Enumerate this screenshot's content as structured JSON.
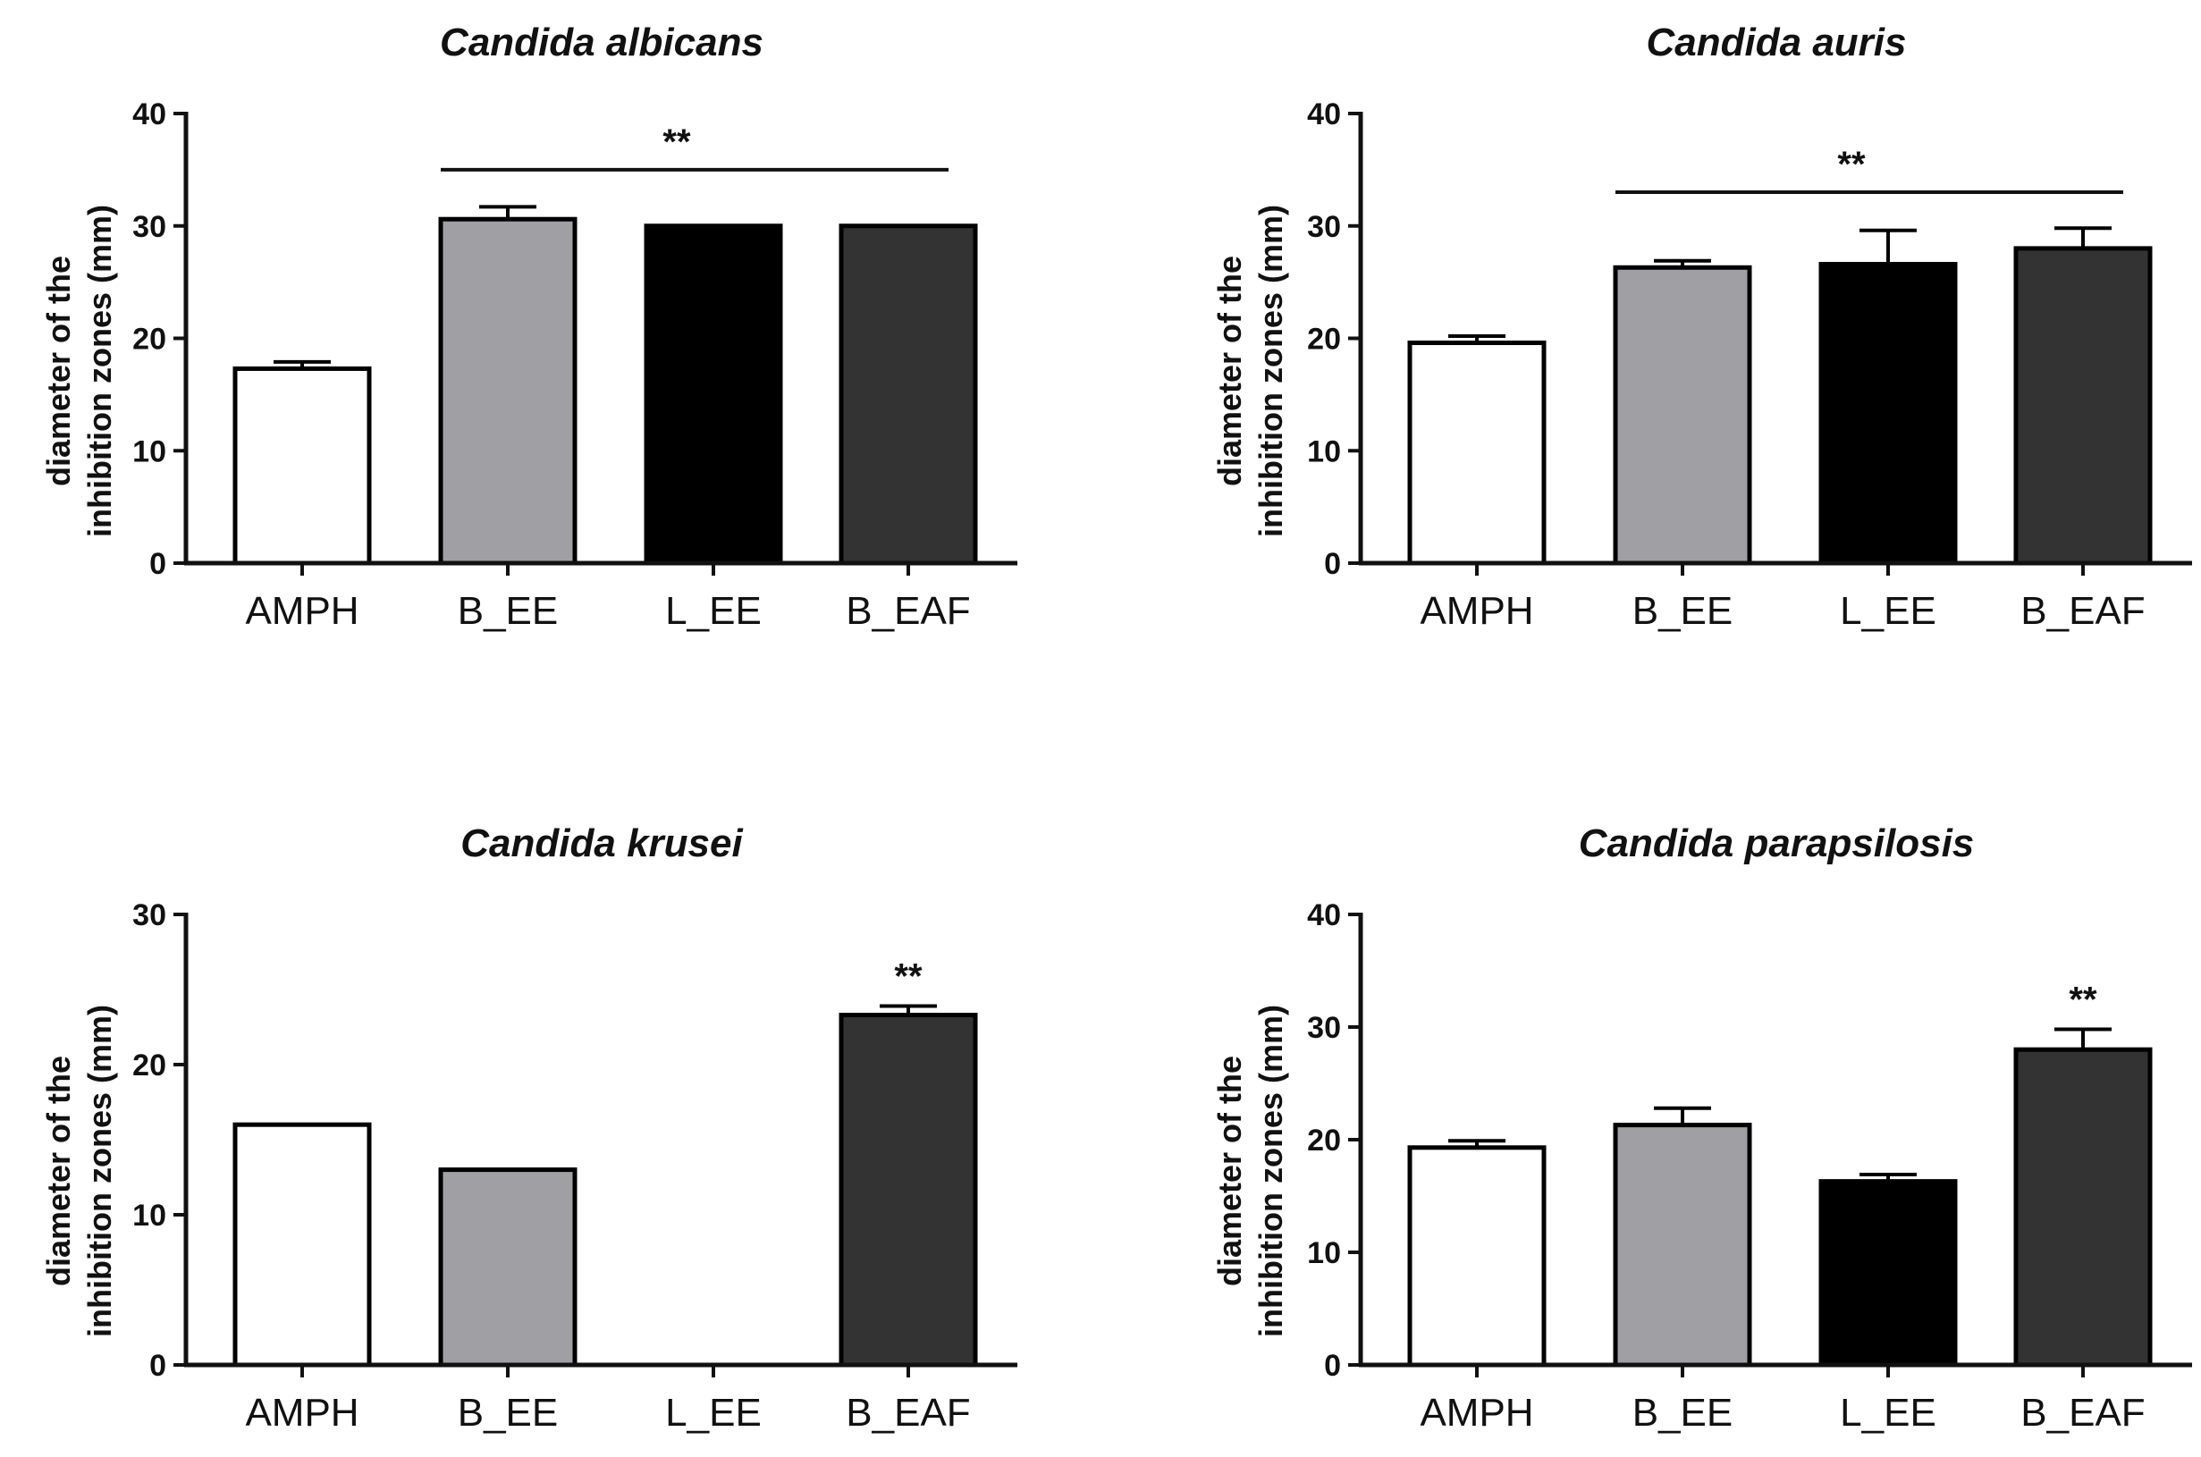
{
  "chart_data": [
    {
      "type": "bar",
      "title": "Candida albicans",
      "ylabel": [
        "diameter of the",
        "inhibition zones (mm)"
      ],
      "xlabel": "",
      "ylim": [
        0,
        40
      ],
      "yticks": [
        0,
        10,
        20,
        30,
        40
      ],
      "categories": [
        "AMPH",
        "B_EE",
        "L_EE",
        "B_EAF"
      ],
      "values": [
        17.3,
        30.6,
        30.0,
        30.0
      ],
      "errors": [
        0.6,
        1.1,
        0,
        0
      ],
      "colors": [
        "#ffffff",
        "#a0a0a4",
        "#000000",
        "#333333"
      ],
      "significance": {
        "label": "**",
        "type": "bracket",
        "from": 1,
        "to": 3,
        "level": 35
      }
    },
    {
      "type": "bar",
      "title": "Candida auris",
      "ylabel": [
        "diameter of the",
        "inhibition zones (mm)"
      ],
      "xlabel": "",
      "ylim": [
        0,
        40
      ],
      "yticks": [
        0,
        10,
        20,
        30,
        40
      ],
      "categories": [
        "AMPH",
        "B_EE",
        "L_EE",
        "B_EAF"
      ],
      "values": [
        19.6,
        26.3,
        26.6,
        28.0
      ],
      "errors": [
        0.6,
        0.6,
        3.0,
        1.8
      ],
      "colors": [
        "#ffffff",
        "#a0a0a4",
        "#000000",
        "#333333"
      ],
      "significance": {
        "label": "**",
        "type": "bracket",
        "from": 1,
        "to": 3,
        "level": 33
      }
    },
    {
      "type": "bar",
      "title": "Candida krusei",
      "ylabel": [
        "diameter of the",
        "inhibition zones (mm)"
      ],
      "xlabel": "",
      "ylim": [
        0,
        30
      ],
      "yticks": [
        0,
        10,
        20,
        30
      ],
      "categories": [
        "AMPH",
        "B_EE",
        "L_EE",
        "B_EAF"
      ],
      "values": [
        16.0,
        13.0,
        0,
        23.3
      ],
      "errors": [
        0,
        0,
        0,
        0.6
      ],
      "colors": [
        "#ffffff",
        "#a0a0a4",
        "#000000",
        "#333333"
      ],
      "significance": {
        "label": "**",
        "type": "single",
        "index": 3
      }
    },
    {
      "type": "bar",
      "title": "Candida parapsilosis",
      "ylabel": [
        "diameter of the",
        "inhibition zones (mm)"
      ],
      "xlabel": "",
      "ylim": [
        0,
        40
      ],
      "yticks": [
        0,
        10,
        20,
        30,
        40
      ],
      "categories": [
        "AMPH",
        "B_EE",
        "L_EE",
        "B_EAF"
      ],
      "values": [
        19.3,
        21.3,
        16.3,
        28.0
      ],
      "errors": [
        0.6,
        1.5,
        0.6,
        1.8
      ],
      "colors": [
        "#ffffff",
        "#a0a0a4",
        "#000000",
        "#333333"
      ],
      "significance": {
        "label": "**",
        "type": "single",
        "index": 3
      }
    }
  ]
}
